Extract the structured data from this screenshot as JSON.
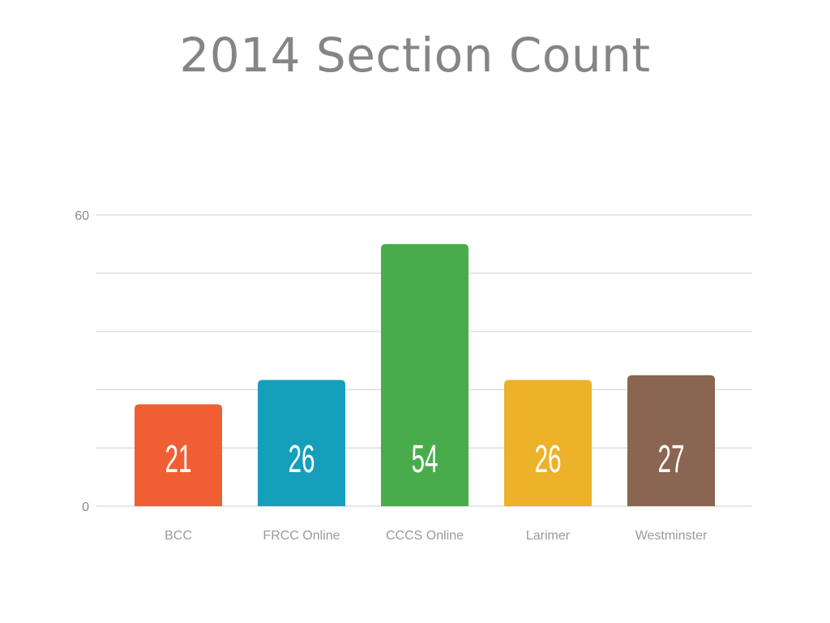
{
  "title": "2014 Section Count",
  "colors": {
    "BCC": "#f05f34",
    "FRCC Online": "#159fbb",
    "CCCS Online": "#49ac4b",
    "Larimer": "#ebb22a",
    "Westminster": "#8a6552",
    "grid": "#dedede",
    "title": "#858585"
  },
  "chart_data": {
    "type": "bar",
    "title": "2014 Section Count",
    "categories": [
      "BCC",
      "FRCC Online",
      "CCCS Online",
      "Larimer",
      "Westminster"
    ],
    "values": [
      21,
      26,
      54,
      26,
      27
    ],
    "data_labels": [
      "21",
      "26",
      "54",
      "26",
      "27"
    ],
    "xlabel": "",
    "ylabel": "",
    "ylim": [
      0,
      60
    ],
    "y_tick_labels": [
      "0",
      "60"
    ],
    "grid_values": [
      0,
      12,
      24,
      36,
      48,
      60
    ],
    "grid": true,
    "legend": "none"
  }
}
